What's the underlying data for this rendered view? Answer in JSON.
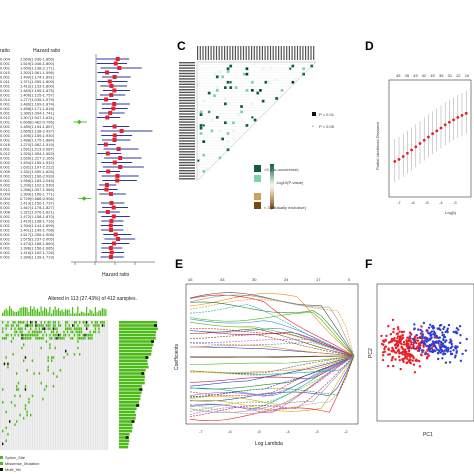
{
  "panels": {
    "A": {
      "col_left": "ratio",
      "col_right": "Hazard ratio",
      "xlabel": "Hazard ratio",
      "pvalues": [
        "0.004",
        "0.001",
        "0.001",
        "0.010",
        "0.001",
        "0.011",
        "0.001",
        "0.001",
        "0.001",
        "0.012",
        "0.001",
        "0.001",
        "0.001",
        "0.012",
        "0.001",
        "0.001",
        "0.001",
        "0.001",
        "0.001",
        "0.016",
        "0.001",
        "0.012",
        "0.001",
        "0.002",
        "0.001",
        "0.005",
        "0.001",
        "0.001",
        "0.002",
        "0.012",
        "0.004",
        "0.004",
        "0.001",
        "0.001",
        "0.008",
        "0.001",
        "0.001",
        "0.001",
        "0.001",
        "0.001",
        "0.001",
        "0.001",
        "0.001",
        "0.001",
        "0.001"
      ],
      "hr_text": [
        "1.569(1.036-1.855)",
        "1.519(1.046-1.800)",
        "1.609(1.138-2.171)",
        "1.302(1.061-1.596)",
        "1.490(1.174-1.891)",
        "1.371(1.059-1.809)",
        "1.412(1.133-1.800)",
        "1.483(1.195-1.875)",
        "1.406(1.125-1.757)",
        "1.277(1.035-1.575)",
        "1.480(1.169-1.874)",
        "1.458(1.171-1.816)",
        "1.380(1.094-1.741)",
        "1.307(1.047-1.631)",
        "0.606(0.462-0.795)",
        "1.489(1.194-1.857)",
        "1.665(1.138-2.437)",
        "1.495(1.159-1.930)",
        "1.488(1.175-1.884)",
        "1.270(1.062-1.519)",
        "1.591(1.213-2.087)",
        "1.320(1.054-1.653)",
        "1.630(1.227-2.165)",
        "1.494(1.155-1.932)",
        "1.631(1.197-2.222)",
        "1.331(1.090-1.625)",
        "1.562(1.166-2.093)",
        "1.556(1.184-2.045)",
        "1.299(1.102-1.530)",
        "1.286(1.057-1.565)",
        "1.399(1.106-1.771)",
        "0.729(0.586-0.906)",
        "1.413(1.150-1.737)",
        "1.467(1.178-1.827)",
        "1.321(1.076-1.621)",
        "1.472(1.158-1.870)",
        "1.410(1.158-1.716)",
        "1.394(1.144-1.699)",
        "1.401(1.149-1.708)",
        "1.517(1.206-1.908)",
        "1.575(1.237-2.005)",
        "1.474(1.168-1.860)",
        "1.396(1.156-1.685)",
        "1.416(1.162-1.726)",
        "1.399(1.139-1.719)"
      ]
    },
    "C": {
      "legend_title": "-log10(P-value)",
      "legend_cooc": ">3 (Co-occurrence)",
      "legend_excl": "< 3 (Mutually exclusive)",
      "sig1": "P < 0.01",
      "sig2": "P < 0.05"
    },
    "D": {
      "ylabel": "Partial Likelihood Deviance",
      "xlabel": "Log(λ)",
      "top_ticks": [
        "45",
        "45",
        "43",
        "42",
        "40",
        "35",
        "31",
        "22",
        "10"
      ],
      "x_ticks": [
        "-7",
        "-6",
        "-5",
        "-4",
        "-3"
      ]
    },
    "E": {
      "ylabel": "Coefficients",
      "xlabel": "Log Lambda",
      "top_ticks": [
        "45",
        "43",
        "30",
        "24",
        "17",
        "0"
      ],
      "x_ticks": [
        "-7",
        "-6",
        "-5",
        "-4",
        "-3",
        "-2"
      ]
    },
    "F": {
      "xlabel": "PC1",
      "ylabel": "PC2"
    },
    "B": {
      "title": "Altered in 113 (27.43%) of 412 samples.",
      "legend": [
        "Splice_Site",
        "Missense_Mutation",
        "Multi_Hit"
      ]
    }
  },
  "colors": {
    "hr_point": "#e8202a",
    "hr_bar": "#2a3a9c",
    "green": "#4cbb17",
    "red": "#e8202a",
    "blue": "#2f3fd0",
    "black": "#111111"
  },
  "chart_data": [
    {
      "panel": "A",
      "type": "forest",
      "xlabel": "Hazard ratio",
      "hr": [
        1.569,
        1.519,
        1.609,
        1.302,
        1.49,
        1.371,
        1.412,
        1.483,
        1.406,
        1.277,
        1.48,
        1.458,
        1.38,
        1.307,
        0.606,
        1.489,
        1.665,
        1.495,
        1.488,
        1.27,
        1.591,
        1.32,
        1.63,
        1.494,
        1.631,
        1.331,
        1.562,
        1.556,
        1.299,
        1.286,
        1.399,
        0.729,
        1.413,
        1.467,
        1.321,
        1.472,
        1.41,
        1.394,
        1.401,
        1.517,
        1.575,
        1.474,
        1.396,
        1.416,
        1.399
      ],
      "lower": [
        1.036,
        1.046,
        1.138,
        1.061,
        1.174,
        1.059,
        1.133,
        1.195,
        1.125,
        1.035,
        1.169,
        1.171,
        1.094,
        1.047,
        0.462,
        1.194,
        1.138,
        1.159,
        1.175,
        1.062,
        1.213,
        1.054,
        1.227,
        1.155,
        1.197,
        1.09,
        1.166,
        1.184,
        1.102,
        1.057,
        1.106,
        0.586,
        1.15,
        1.178,
        1.076,
        1.158,
        1.158,
        1.144,
        1.149,
        1.206,
        1.237,
        1.168,
        1.156,
        1.162,
        1.139
      ],
      "upper": [
        1.855,
        1.8,
        2.171,
        1.596,
        1.891,
        1.809,
        1.8,
        1.875,
        1.757,
        1.575,
        1.874,
        1.816,
        1.741,
        1.631,
        0.795,
        1.857,
        2.437,
        1.93,
        1.884,
        1.519,
        2.087,
        1.653,
        2.165,
        1.932,
        2.222,
        1.625,
        2.093,
        2.045,
        1.53,
        1.565,
        1.771,
        0.906,
        1.737,
        1.827,
        1.621,
        1.87,
        1.716,
        1.699,
        1.708,
        1.908,
        2.005,
        1.86,
        1.685,
        1.726,
        1.719
      ],
      "xlim": [
        0.4,
        2.5
      ]
    },
    {
      "panel": "D",
      "type": "line",
      "xlabel": "Log(λ)",
      "ylabel": "Partial Likelihood Deviance",
      "x": [
        -7.3,
        -7.0,
        -6.7,
        -6.4,
        -6.1,
        -5.8,
        -5.5,
        -5.2,
        -4.9,
        -4.6,
        -4.3,
        -4.0,
        -3.7,
        -3.4,
        -3.1,
        -2.8,
        -2.5,
        -2.2
      ],
      "y": [
        12.0,
        12.05,
        12.12,
        12.2,
        12.28,
        12.36,
        12.44,
        12.52,
        12.6,
        12.68,
        12.75,
        12.82,
        12.9,
        12.96,
        13.02,
        13.08,
        13.13,
        13.18
      ],
      "ylim": [
        11.2,
        13.9
      ]
    },
    {
      "panel": "F",
      "type": "scatter",
      "xlabel": "PC1",
      "ylabel": "PC2",
      "series": [
        {
          "color": "#e8202a",
          "center": [
            -1.2,
            0.2
          ],
          "spread": [
            1.4,
            0.9
          ],
          "n": 230
        },
        {
          "color": "#2f3fd0",
          "center": [
            1.0,
            0.6
          ],
          "spread": [
            1.2,
            0.9
          ],
          "n": 190
        }
      ]
    }
  ]
}
